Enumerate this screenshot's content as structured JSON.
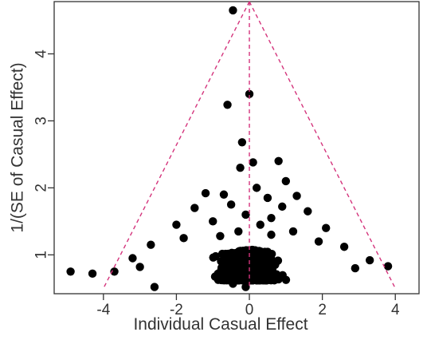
{
  "chart_data": {
    "type": "scatter",
    "title": "",
    "xlabel": "Individual Casual Effect",
    "ylabel": "1/(SE of Casual Effect)",
    "xlim": [
      -5.35,
      4.65
    ],
    "ylim": [
      0.42,
      4.78
    ],
    "xticks": [
      -4,
      -2,
      0,
      2,
      4
    ],
    "yticks": [
      1,
      2,
      3,
      4
    ],
    "xtick_labels": [
      "-4",
      "-2",
      "0",
      "2",
      "4"
    ],
    "ytick_labels": [
      "1",
      "2",
      "3",
      "4"
    ],
    "grid": false,
    "legend": "none",
    "colors": {
      "points": "#000000",
      "funnel": "#d4347c",
      "axis": "#333333"
    },
    "reference_lines": {
      "vertical_x": 0,
      "funnel_apex": [
        0,
        4.78
      ],
      "funnel_left_base": [
        -4.0,
        0.5
      ],
      "funnel_right_base": [
        4.0,
        0.5
      ]
    },
    "series": [
      {
        "points": [
          [
            -0.45,
            4.65
          ],
          [
            0.0,
            3.4
          ],
          [
            -0.6,
            3.24
          ],
          [
            -0.2,
            2.68
          ],
          [
            0.1,
            2.38
          ],
          [
            0.8,
            2.4
          ],
          [
            -0.25,
            2.3
          ],
          [
            1.0,
            2.1
          ],
          [
            -1.2,
            1.92
          ],
          [
            -0.7,
            1.9
          ],
          [
            0.2,
            2.0
          ],
          [
            0.5,
            1.85
          ],
          [
            1.3,
            1.88
          ],
          [
            -0.5,
            1.75
          ],
          [
            0.9,
            1.72
          ],
          [
            -1.5,
            1.7
          ],
          [
            1.6,
            1.65
          ],
          [
            -0.1,
            1.6
          ],
          [
            0.6,
            1.55
          ],
          [
            -2.0,
            1.45
          ],
          [
            2.1,
            1.4
          ],
          [
            -1.0,
            1.5
          ],
          [
            0.3,
            1.45
          ],
          [
            -0.3,
            1.35
          ],
          [
            1.2,
            1.35
          ],
          [
            -2.7,
            1.15
          ],
          [
            2.6,
            1.12
          ],
          [
            -3.2,
            0.95
          ],
          [
            3.3,
            0.92
          ],
          [
            -1.8,
            1.25
          ],
          [
            1.9,
            1.2
          ],
          [
            -4.9,
            0.75
          ],
          [
            -4.3,
            0.72
          ],
          [
            -3.7,
            0.75
          ],
          [
            3.8,
            0.83
          ],
          [
            -2.6,
            0.52
          ],
          [
            -0.45,
            0.57
          ],
          [
            -0.1,
            0.52
          ],
          [
            0.6,
            1.3
          ],
          [
            -0.8,
            1.28
          ],
          [
            2.9,
            0.8
          ],
          [
            -3.0,
            0.82
          ]
        ]
      }
    ],
    "dense_cloud": {
      "count": 1100,
      "x_range": [
        -3.6,
        3.7
      ],
      "y_range": [
        0.62,
        1.08
      ],
      "note_source": "visual"
    }
  }
}
